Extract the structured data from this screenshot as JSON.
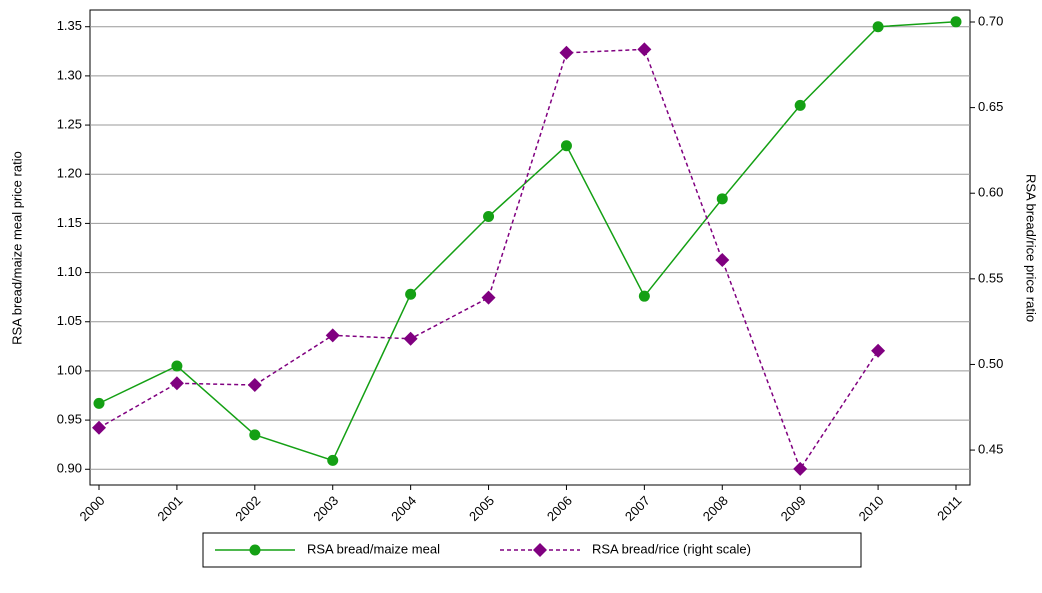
{
  "chart_data": {
    "type": "line",
    "categories": [
      "2000",
      "2001",
      "2002",
      "2003",
      "2004",
      "2005",
      "2006",
      "2007",
      "2008",
      "2009",
      "2010",
      "2011"
    ],
    "y_label": "RSA bread/maize meal price ratio",
    "y2_label": "RSA bread/rice price ratio",
    "series": [
      {
        "name": "RSA bread/maize meal",
        "color": "#14a014",
        "values": [
          0.967,
          1.005,
          0.935,
          0.909,
          1.078,
          1.157,
          1.229,
          1.076,
          1.175,
          1.27,
          1.35,
          1.355
        ]
      },
      {
        "name": "RSA bread/rice (right scale)",
        "color": "#800080",
        "axis": "y2",
        "values": [
          0.463,
          0.489,
          0.488,
          0.517,
          0.515,
          0.539,
          0.682,
          0.684,
          0.561,
          0.439,
          0.508,
          null
        ]
      }
    ],
    "ylim": [
      0.884,
      1.367
    ],
    "yticks": [
      {
        "value": 0.9,
        "label": "0.90"
      },
      {
        "value": 0.95,
        "label": "0.95"
      },
      {
        "value": 1.0,
        "label": "1.00"
      },
      {
        "value": 1.05,
        "label": "1.05"
      },
      {
        "value": 1.1,
        "label": "1.10"
      },
      {
        "value": 1.15,
        "label": "1.15"
      },
      {
        "value": 1.2,
        "label": "1.20"
      },
      {
        "value": 1.25,
        "label": "1.25"
      },
      {
        "value": 1.3,
        "label": "1.30"
      },
      {
        "value": 1.35,
        "label": "1.35"
      }
    ],
    "y2lim": [
      0.4296,
      0.707
    ],
    "y2ticks": [
      {
        "value": 0.45,
        "label": "0.45"
      },
      {
        "value": 0.5,
        "label": "0.50"
      },
      {
        "value": 0.55,
        "label": "0.55"
      },
      {
        "value": 0.6,
        "label": "0.60"
      },
      {
        "value": 0.65,
        "label": "0.65"
      },
      {
        "value": 0.7,
        "label": "0.70"
      }
    ],
    "grid": true
  }
}
